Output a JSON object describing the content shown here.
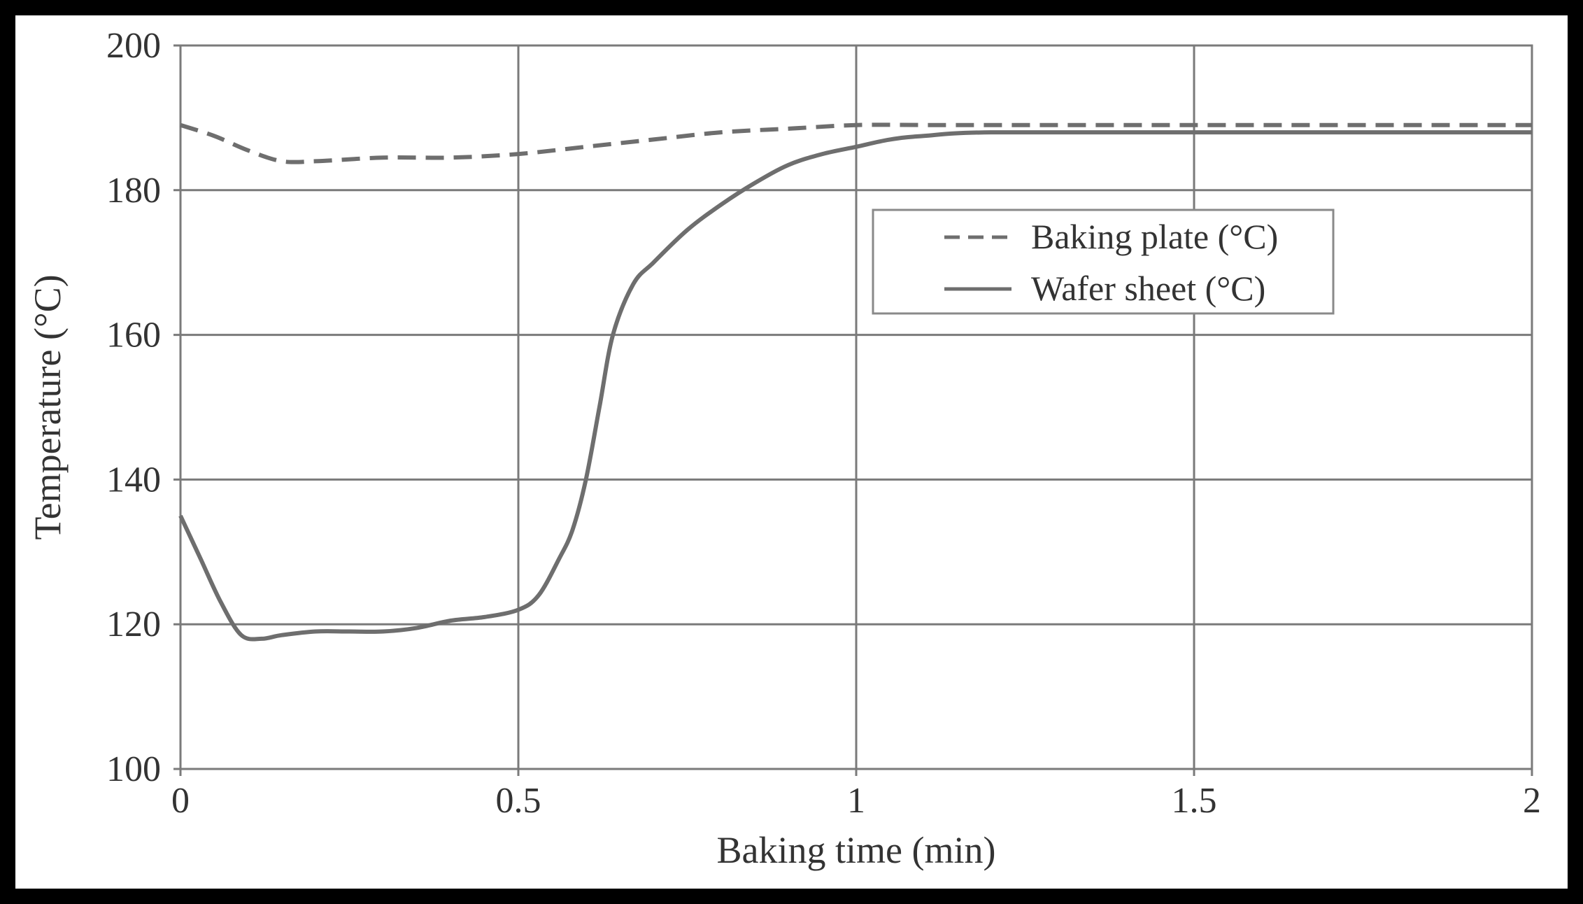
{
  "chart_data": {
    "type": "line",
    "title": "",
    "xlabel": "Baking time (min)",
    "ylabel": "Temperature (°C)",
    "xlim": [
      0,
      2
    ],
    "ylim": [
      100,
      200
    ],
    "xticks": [
      0,
      0.5,
      1,
      1.5,
      2
    ],
    "xtick_labels": [
      "0",
      "0.5",
      "1",
      "1.5",
      "2"
    ],
    "yticks": [
      100,
      120,
      140,
      160,
      180,
      200
    ],
    "ytick_labels": [
      "100",
      "120",
      "140",
      "160",
      "180",
      "200"
    ],
    "grid": true,
    "legend_position": "upper-right",
    "series": [
      {
        "name": "Baking plate (°C)",
        "style": "dashed",
        "color": "#6e6e6e",
        "x": [
          0,
          0.05,
          0.1,
          0.15,
          0.2,
          0.3,
          0.4,
          0.5,
          0.6,
          0.7,
          0.8,
          0.9,
          1.0,
          1.1,
          1.2,
          1.5,
          2.0
        ],
        "y": [
          189,
          187.5,
          185.5,
          184,
          184,
          184.5,
          184.5,
          185,
          186,
          187,
          188,
          188.5,
          189,
          189,
          189,
          189,
          189
        ]
      },
      {
        "name": "Wafer sheet (°C)",
        "style": "solid",
        "color": "#6e6e6e",
        "x": [
          0,
          0.03,
          0.06,
          0.09,
          0.12,
          0.15,
          0.2,
          0.25,
          0.3,
          0.35,
          0.4,
          0.45,
          0.5,
          0.53,
          0.56,
          0.58,
          0.6,
          0.62,
          0.64,
          0.67,
          0.7,
          0.75,
          0.8,
          0.85,
          0.9,
          0.95,
          1.0,
          1.05,
          1.1,
          1.2,
          1.5,
          2.0
        ],
        "y": [
          135,
          129,
          123,
          118.5,
          118,
          118.5,
          119,
          119,
          119,
          119.5,
          120.5,
          121,
          122,
          124,
          129,
          133,
          140,
          150,
          160,
          167,
          170,
          174.5,
          178,
          181,
          183.5,
          185,
          186,
          187,
          187.5,
          188,
          188,
          188
        ]
      }
    ]
  }
}
